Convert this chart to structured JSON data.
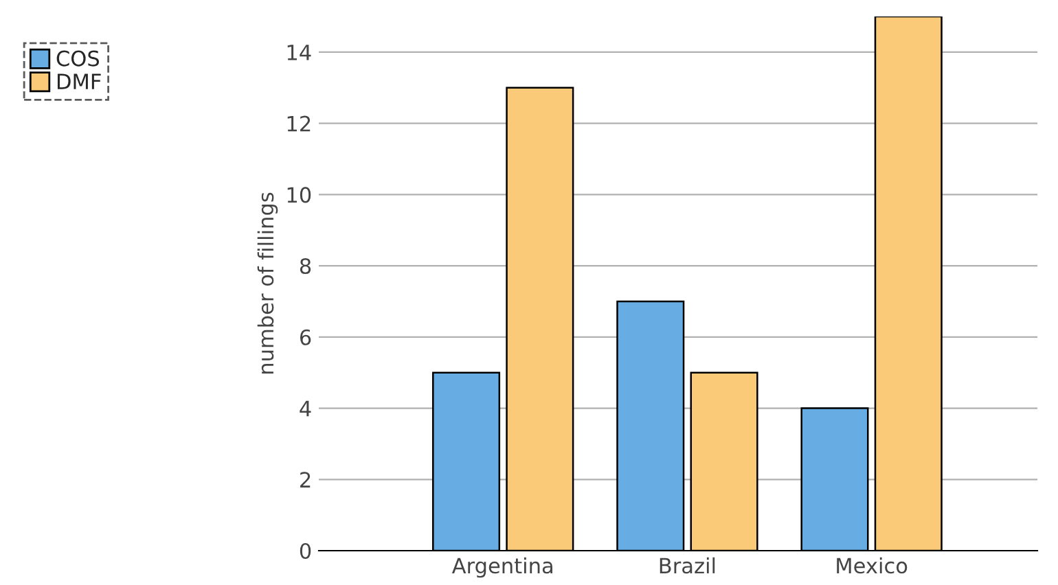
{
  "chart_data": {
    "type": "bar",
    "ylabel": "number of fillings",
    "categories": [
      "Argentina",
      "Brazil",
      "Mexico"
    ],
    "series": [
      {
        "name": "COS",
        "color": "#67ade3",
        "values": [
          5,
          7,
          4
        ]
      },
      {
        "name": "DMF",
        "color": "#fbca79",
        "values": [
          13,
          5,
          15
        ]
      }
    ],
    "ylim": [
      0,
      15
    ],
    "yticks": [
      0,
      2,
      4,
      6,
      8,
      10,
      12,
      14
    ],
    "grid": "y",
    "legend": "left"
  }
}
